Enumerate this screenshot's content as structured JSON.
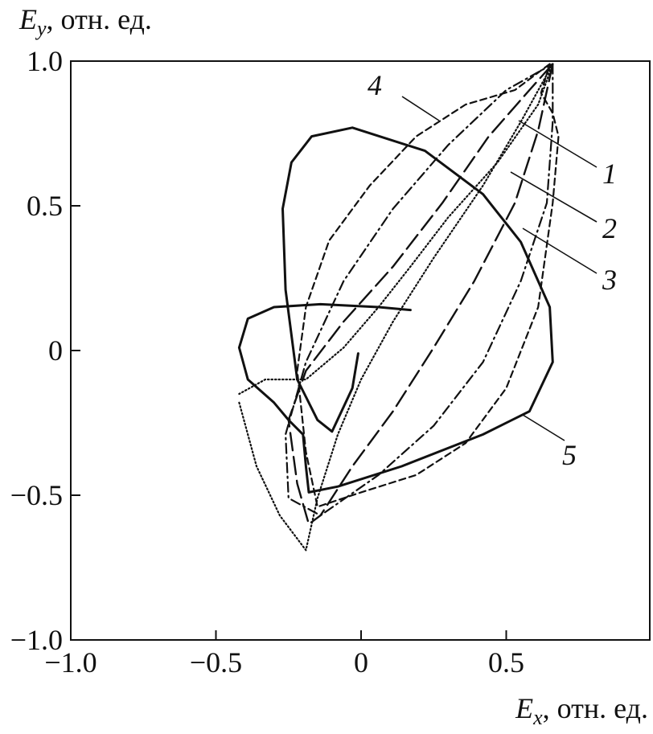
{
  "chart_data": {
    "type": "line",
    "x_label": {
      "symbol": "E",
      "subscript": "x",
      "unit": ", отн. ед."
    },
    "y_label": {
      "symbol": "E",
      "subscript": "y",
      "unit": ", отн. ед."
    },
    "xlim": [
      -1,
      1
    ],
    "ylim": [
      -1,
      1
    ],
    "xticks": [
      {
        "value": -1,
        "label": "−1.0"
      },
      {
        "value": -0.5,
        "label": "−0.5"
      },
      0,
      0.5
    ],
    "yticks": [
      {
        "value": -1,
        "label": "−1.0"
      },
      {
        "value": -0.5,
        "label": "−0.5"
      },
      0,
      0.5,
      {
        "value": 1,
        "label": "1.0"
      }
    ],
    "series": [
      {
        "name": "1",
        "color": "#111111",
        "line_style": "dotted",
        "x": [
          -0.42,
          -0.36,
          -0.28,
          -0.19,
          -0.15,
          -0.08,
          0,
          0.11,
          0.25,
          0.42,
          0.55,
          0.66,
          0.61,
          0.47,
          0.3,
          0.17,
          0.06,
          -0.06,
          -0.19,
          -0.33,
          -0.42
        ],
        "values": [
          -0.18,
          -0.4,
          -0.57,
          -0.69,
          -0.51,
          -0.29,
          -0.1,
          0.1,
          0.32,
          0.57,
          0.79,
          0.99,
          0.85,
          0.65,
          0.46,
          0.29,
          0.15,
          0.01,
          -0.1,
          -0.1,
          -0.15
        ]
      },
      {
        "name": "2",
        "color": "#111111",
        "line_style": "long-dash",
        "x": [
          0.66,
          0.61,
          0.53,
          0.39,
          0.25,
          0.11,
          -0.03,
          -0.14,
          -0.18,
          -0.22,
          -0.25,
          -0.19,
          -0.06,
          0.11,
          0.28,
          0.44,
          0.58,
          0.66
        ],
        "values": [
          0.99,
          0.76,
          0.51,
          0.24,
          0.01,
          -0.21,
          -0.4,
          -0.57,
          -0.6,
          -0.46,
          -0.24,
          -0.07,
          0.1,
          0.29,
          0.51,
          0.74,
          0.9,
          0.99
        ]
      },
      {
        "name": "3",
        "color": "#111111",
        "line_style": "dash-dot",
        "x": [
          0.66,
          0.66,
          0.64,
          0.55,
          0.42,
          0.25,
          0.06,
          -0.14,
          -0.25,
          -0.26,
          -0.19,
          -0.06,
          0.11,
          0.3,
          0.5,
          0.66
        ],
        "values": [
          0.99,
          0.79,
          0.51,
          0.24,
          -0.04,
          -0.26,
          -0.43,
          -0.57,
          -0.51,
          -0.29,
          -0.04,
          0.24,
          0.49,
          0.71,
          0.9,
          0.99
        ]
      },
      {
        "name": "4",
        "color": "#111111",
        "line_style": "short-dash",
        "x": [
          0.65,
          0.53,
          0.36,
          0.19,
          0.03,
          -0.11,
          -0.19,
          -0.22,
          -0.19,
          -0.15,
          0,
          0.19,
          0.36,
          0.5,
          0.61,
          0.66,
          0.68,
          0.66,
          0.62,
          0.65
        ],
        "values": [
          0.99,
          0.9,
          0.85,
          0.74,
          0.57,
          0.38,
          0.15,
          -0.07,
          -0.35,
          -0.54,
          -0.49,
          -0.43,
          -0.32,
          -0.13,
          0.15,
          0.51,
          0.74,
          0.82,
          0.89,
          0.99
        ]
      },
      {
        "name": "5",
        "color": "#111111",
        "line_style": "solid",
        "x": [
          -0.01,
          -0.03,
          -0.1,
          -0.15,
          -0.22,
          -0.26,
          -0.27,
          -0.24,
          -0.17,
          -0.03,
          0.22,
          0.42,
          0.55,
          0.65,
          0.66,
          0.58,
          0.42,
          0.14,
          -0.08,
          -0.18,
          -0.19,
          -0.2,
          -0.25,
          -0.3,
          -0.39,
          -0.42,
          -0.39,
          -0.3,
          -0.14,
          0.06,
          0.17
        ],
        "values": [
          -0.01,
          -0.13,
          -0.28,
          -0.24,
          -0.1,
          0.21,
          0.49,
          0.65,
          0.74,
          0.77,
          0.69,
          0.54,
          0.375,
          0.15,
          -0.04,
          -0.21,
          -0.29,
          -0.4,
          -0.47,
          -0.49,
          -0.4,
          -0.29,
          -0.24,
          -0.18,
          -0.1,
          0.01,
          0.11,
          0.15,
          0.16,
          0.15,
          0.14
        ]
      }
    ]
  }
}
